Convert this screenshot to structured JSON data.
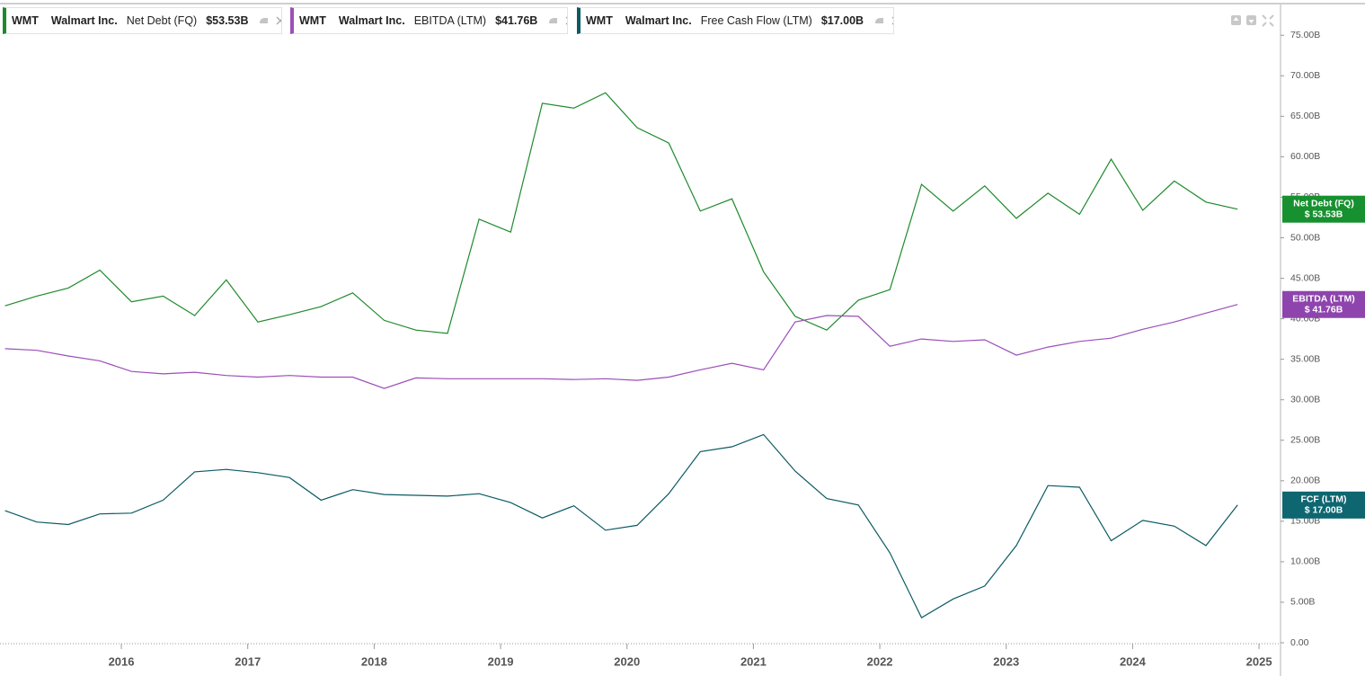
{
  "chart_data": {
    "type": "line",
    "y_axis_side": "right",
    "x": [
      2015.08,
      2015.33,
      2015.58,
      2015.83,
      2016.08,
      2016.33,
      2016.58,
      2016.83,
      2017.08,
      2017.33,
      2017.58,
      2017.83,
      2018.08,
      2018.33,
      2018.58,
      2018.83,
      2019.08,
      2019.33,
      2019.58,
      2019.83,
      2020.08,
      2020.33,
      2020.58,
      2020.83,
      2021.08,
      2021.33,
      2021.58,
      2021.83,
      2022.08,
      2022.33,
      2022.58,
      2022.83,
      2023.08,
      2023.33,
      2023.58,
      2023.83,
      2024.08,
      2024.33,
      2024.58,
      2024.83
    ],
    "xlim": [
      2015.04,
      2025.17
    ],
    "xticks": [
      2016,
      2017,
      2018,
      2019,
      2020,
      2021,
      2022,
      2023,
      2024,
      2025
    ],
    "ylim": [
      0,
      78.8
    ],
    "yticks": [
      {
        "value": 0,
        "label": "0.00"
      },
      {
        "value": 5,
        "label": "5.00B"
      },
      {
        "value": 10,
        "label": "10.00B"
      },
      {
        "value": 15,
        "label": "15.00B"
      },
      {
        "value": 20,
        "label": "20.00B"
      },
      {
        "value": 25,
        "label": "25.00B"
      },
      {
        "value": 30,
        "label": "30.00B"
      },
      {
        "value": 35,
        "label": "35.00B"
      },
      {
        "value": 40,
        "label": "40.00B"
      },
      {
        "value": 45,
        "label": "45.00B"
      },
      {
        "value": 50,
        "label": "50.00B"
      },
      {
        "value": 55,
        "label": "55.00B"
      },
      {
        "value": 60,
        "label": "60.00B"
      },
      {
        "value": 65,
        "label": "65.00B"
      },
      {
        "value": 70,
        "label": "70.00B"
      },
      {
        "value": 75,
        "label": "75.00B"
      }
    ],
    "series": [
      {
        "ticker": "WMT",
        "company": "Walmart Inc.",
        "name": "Net Debt (FQ)",
        "value_label": "$53.53B",
        "tag_name": "Net Debt (FQ)",
        "tag_value": "$ 53.53B",
        "color": "#1e8a2c",
        "tag_color": "#17902f",
        "values": [
          41.6,
          42.8,
          43.8,
          46.0,
          42.1,
          42.8,
          40.4,
          44.8,
          39.6,
          40.5,
          41.5,
          43.2,
          39.8,
          38.6,
          38.2,
          52.3,
          50.7,
          66.6,
          66.0,
          67.9,
          63.6,
          61.7,
          53.3,
          54.8,
          45.8,
          40.3,
          38.6,
          42.3,
          43.6,
          56.6,
          53.3,
          56.4,
          52.4,
          55.5,
          52.9,
          59.7,
          53.4,
          57.0,
          54.4,
          53.53
        ]
      },
      {
        "ticker": "WMT",
        "company": "Walmart Inc.",
        "name": "EBITDA (LTM)",
        "value_label": "$41.76B",
        "tag_name": "EBITDA (LTM)",
        "tag_value": "$ 41.76B",
        "color": "#9b4fb8",
        "tag_color": "#8e44ad",
        "values": [
          36.3,
          36.1,
          35.4,
          34.8,
          33.5,
          33.2,
          33.4,
          33.0,
          32.8,
          33.0,
          32.8,
          32.8,
          31.4,
          32.7,
          32.6,
          32.6,
          32.6,
          32.6,
          32.5,
          32.6,
          32.4,
          32.8,
          33.7,
          34.5,
          33.7,
          39.6,
          40.4,
          40.3,
          36.6,
          37.5,
          37.2,
          37.4,
          35.5,
          36.5,
          37.2,
          37.6,
          38.7,
          39.6,
          40.7,
          41.76
        ]
      },
      {
        "ticker": "WMT",
        "company": "Walmart Inc.",
        "name": "Free Cash Flow (LTM)",
        "value_label": "$17.00B",
        "tag_name": "FCF (LTM)",
        "tag_value": "$ 17.00B",
        "color": "#0b5a64",
        "tag_color": "#0e6670",
        "values": [
          16.3,
          14.9,
          14.6,
          15.9,
          16.0,
          17.6,
          21.1,
          21.4,
          21.0,
          20.4,
          17.6,
          18.9,
          18.3,
          18.2,
          18.1,
          18.4,
          17.3,
          15.4,
          16.9,
          13.9,
          14.5,
          18.4,
          23.6,
          24.2,
          25.7,
          21.2,
          17.8,
          17.0,
          11.1,
          3.1,
          5.4,
          7.0,
          12.0,
          19.4,
          19.2,
          12.6,
          15.1,
          14.4,
          12.0,
          17.0
        ]
      }
    ]
  }
}
